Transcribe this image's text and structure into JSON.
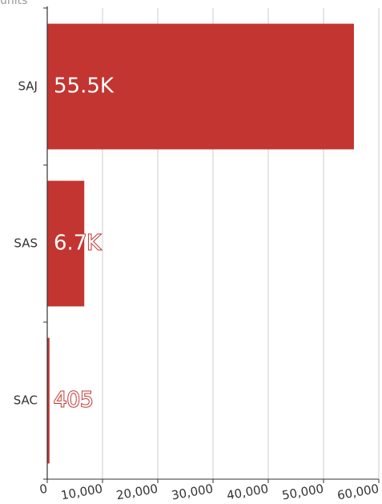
{
  "chart_data": {
    "type": "bar",
    "orientation": "horizontal",
    "x_label": "units",
    "categories": [
      "SAJ",
      "SAS",
      "SAC"
    ],
    "values": [
      55500,
      6700,
      405
    ],
    "value_labels": [
      "55.5K",
      "6.7K",
      "405"
    ],
    "color": "#c23531",
    "xlim": [
      0,
      60000
    ],
    "xticks": [
      0,
      {
        "value": 10000,
        "label": "10,000"
      },
      {
        "value": 20000,
        "label": "20,000"
      },
      {
        "value": 30000,
        "label": "30,000"
      },
      {
        "value": 40000,
        "label": "40,000"
      },
      {
        "value": 50000,
        "label": "50,000"
      },
      {
        "value": 60000,
        "label": "60,000"
      }
    ],
    "grid": true
  }
}
